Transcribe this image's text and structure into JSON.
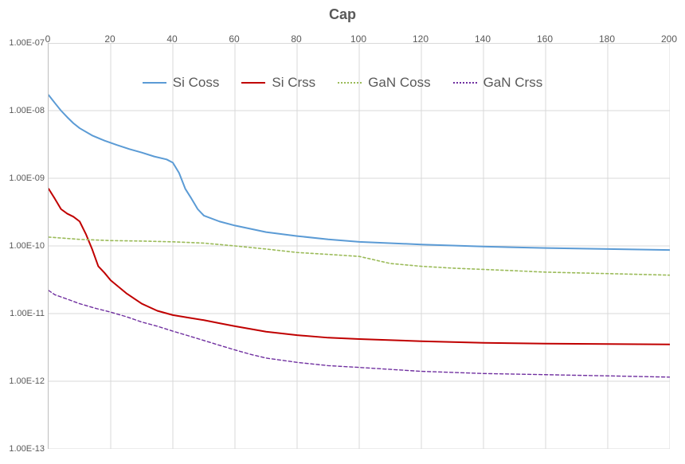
{
  "chart": {
    "type": "line",
    "title": "Cap",
    "title_fontsize": 18,
    "background_color": "#ffffff",
    "grid_color": "#d9d9d9",
    "axis_color": "#bfbfbf",
    "tick_fontsize": 11,
    "legend_fontsize": 17,
    "legend_position": "top-inside",
    "x": {
      "min": 0,
      "max": 200,
      "ticks": [
        0,
        20,
        40,
        60,
        80,
        100,
        120,
        140,
        160,
        180,
        200
      ],
      "tick_labels": [
        "0",
        "20",
        "40",
        "60",
        "80",
        "100",
        "120",
        "140",
        "160",
        "180",
        "200"
      ],
      "tick_position": "top"
    },
    "y": {
      "scale": "log",
      "min": 1e-13,
      "max": 1e-07,
      "ticks": [
        1e-07,
        1e-08,
        1e-09,
        1e-10,
        1e-11,
        1e-12,
        1e-13
      ],
      "tick_labels": [
        "1.00E-07",
        "1.00E-08",
        "1.00E-09",
        "1.00E-10",
        "1.00E-11",
        "1.00E-12",
        "1.00E-13"
      ]
    },
    "series": [
      {
        "name": "Si Coss",
        "color": "#5b9bd5",
        "line_width": 2,
        "dash": "solid",
        "x": [
          0,
          2,
          4,
          6,
          8,
          10,
          14,
          18,
          22,
          26,
          30,
          34,
          38,
          40,
          42,
          44,
          46,
          48,
          50,
          55,
          60,
          70,
          80,
          90,
          100,
          120,
          140,
          160,
          180,
          200
        ],
        "y": [
          1.7e-08,
          1.3e-08,
          1e-08,
          8e-09,
          6.5e-09,
          5.5e-09,
          4.3e-09,
          3.6e-09,
          3.1e-09,
          2.7e-09,
          2.4e-09,
          2.1e-09,
          1.9e-09,
          1.7e-09,
          1.2e-09,
          7e-10,
          5e-10,
          3.5e-10,
          2.8e-10,
          2.3e-10,
          2e-10,
          1.6e-10,
          1.4e-10,
          1.25e-10,
          1.15e-10,
          1.05e-10,
          9.8e-11,
          9.3e-11,
          9e-11,
          8.7e-11
        ]
      },
      {
        "name": "Si Crss",
        "color": "#c00000",
        "line_width": 2,
        "dash": "solid",
        "x": [
          0,
          2,
          4,
          6,
          8,
          10,
          12,
          14,
          16,
          18,
          20,
          25,
          30,
          35,
          40,
          45,
          50,
          55,
          60,
          70,
          80,
          90,
          100,
          120,
          140,
          160,
          180,
          200
        ],
        "y": [
          7e-10,
          5e-10,
          3.5e-10,
          3e-10,
          2.7e-10,
          2.3e-10,
          1.5e-10,
          9e-11,
          5e-11,
          4e-11,
          3.1e-11,
          2e-11,
          1.4e-11,
          1.1e-11,
          9.5e-12,
          8.7e-12,
          8e-12,
          7.2e-12,
          6.5e-12,
          5.4e-12,
          4.8e-12,
          4.4e-12,
          4.2e-12,
          3.9e-12,
          3.7e-12,
          3.6e-12,
          3.55e-12,
          3.5e-12
        ]
      },
      {
        "name": "GaN Coss",
        "color": "#9bbb59",
        "line_width": 1.6,
        "dash": "3,3",
        "x": [
          0,
          5,
          10,
          20,
          30,
          40,
          50,
          60,
          70,
          80,
          90,
          100,
          110,
          120,
          130,
          140,
          160,
          180,
          200
        ],
        "y": [
          1.35e-10,
          1.3e-10,
          1.25e-10,
          1.2e-10,
          1.18e-10,
          1.15e-10,
          1.1e-10,
          1e-10,
          9e-11,
          8e-11,
          7.5e-11,
          7e-11,
          5.5e-11,
          5e-11,
          4.7e-11,
          4.5e-11,
          4.1e-11,
          3.9e-11,
          3.7e-11
        ]
      },
      {
        "name": "GaN Crss",
        "color": "#7030a0",
        "line_width": 1.4,
        "dash": "4,3",
        "x": [
          0,
          2,
          5,
          10,
          15,
          20,
          25,
          30,
          35,
          40,
          45,
          50,
          55,
          60,
          65,
          70,
          80,
          90,
          100,
          120,
          140,
          160,
          180,
          200
        ],
        "y": [
          2.2e-11,
          1.9e-11,
          1.7e-11,
          1.4e-11,
          1.2e-11,
          1.05e-11,
          9e-12,
          7.5e-12,
          6.5e-12,
          5.5e-12,
          4.7e-12,
          4e-12,
          3.4e-12,
          2.9e-12,
          2.5e-12,
          2.2e-12,
          1.9e-12,
          1.7e-12,
          1.6e-12,
          1.4e-12,
          1.3e-12,
          1.25e-12,
          1.2e-12,
          1.15e-12
        ]
      }
    ]
  }
}
